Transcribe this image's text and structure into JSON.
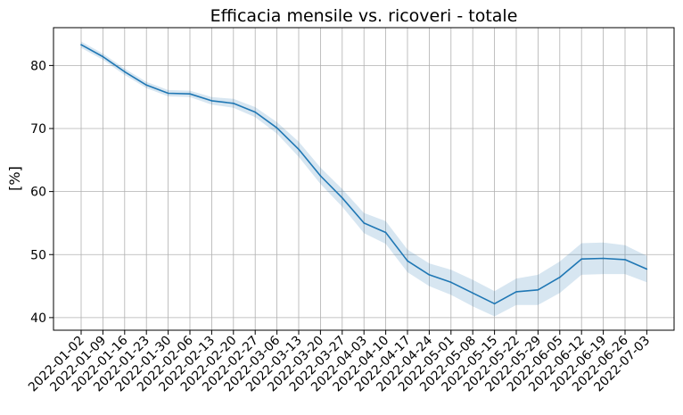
{
  "chart_data": {
    "type": "line",
    "title": "Efficacia mensile vs. ricoveri - totale",
    "xlabel": "",
    "ylabel": "[%]",
    "ylim": [
      38,
      86
    ],
    "yticks": [
      40,
      50,
      60,
      70,
      80
    ],
    "grid": true,
    "line_color": "#1f77b4",
    "band_color": "#1f77b4",
    "categories": [
      "2022-01-02",
      "2022-01-09",
      "2022-01-16",
      "2022-01-23",
      "2022-01-30",
      "2022-02-06",
      "2022-02-13",
      "2022-02-20",
      "2022-02-27",
      "2022-03-06",
      "2022-03-13",
      "2022-03-20",
      "2022-03-27",
      "2022-04-03",
      "2022-04-10",
      "2022-04-17",
      "2022-04-24",
      "2022-05-01",
      "2022-05-08",
      "2022-05-15",
      "2022-05-22",
      "2022-05-29",
      "2022-06-05",
      "2022-06-12",
      "2022-06-19",
      "2022-06-26",
      "2022-07-03"
    ],
    "series": [
      {
        "values": [
          83.3,
          81.4,
          79.0,
          76.9,
          75.6,
          75.5,
          74.4,
          74.0,
          72.6,
          70.1,
          66.7,
          62.5,
          59.0,
          55.0,
          53.5,
          49.0,
          46.8,
          45.6,
          43.9,
          42.2,
          44.1,
          44.4,
          46.4,
          49.3,
          49.4,
          49.2,
          47.7
        ],
        "lower": [
          82.8,
          80.9,
          78.5,
          76.4,
          75.1,
          75.0,
          73.8,
          73.3,
          71.8,
          69.2,
          65.5,
          61.2,
          57.6,
          53.4,
          51.7,
          47.2,
          45.0,
          43.6,
          41.8,
          40.2,
          42.0,
          42.0,
          43.9,
          46.8,
          46.9,
          46.9,
          45.6
        ],
        "upper": [
          83.8,
          81.9,
          79.5,
          77.4,
          76.1,
          76.0,
          75.0,
          74.7,
          73.4,
          71.0,
          67.9,
          63.8,
          60.4,
          56.6,
          55.3,
          50.8,
          48.6,
          47.6,
          46.0,
          44.2,
          46.2,
          46.8,
          48.9,
          51.8,
          51.9,
          51.5,
          49.8
        ]
      }
    ]
  }
}
